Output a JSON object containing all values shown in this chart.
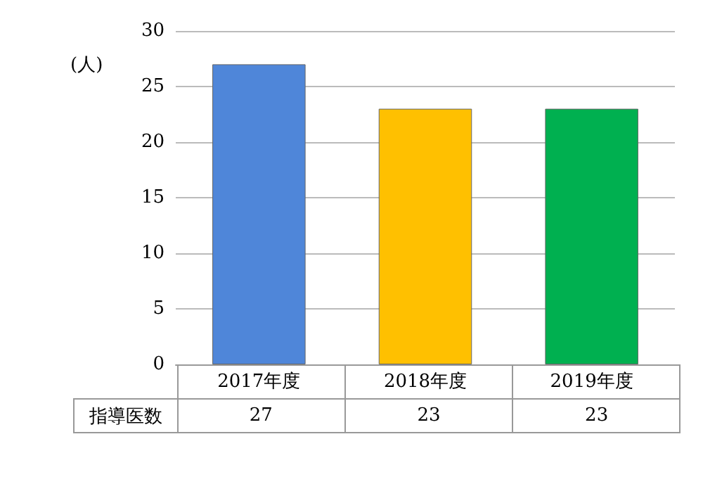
{
  "chart_data": {
    "type": "bar",
    "ylabel": "(人)",
    "categories": [
      "2017年度",
      "2018年度",
      "2019年度"
    ],
    "series": [
      {
        "name": "指導医数",
        "colors": [
          "#4f86d9",
          "#ffc000",
          "#00b050"
        ],
        "values": [
          27,
          23,
          23
        ]
      }
    ],
    "ylim": [
      0,
      30
    ],
    "yticks": [
      0,
      5,
      10,
      15,
      20,
      25,
      30
    ],
    "grid": "y",
    "legend": false,
    "data_labels": true
  }
}
